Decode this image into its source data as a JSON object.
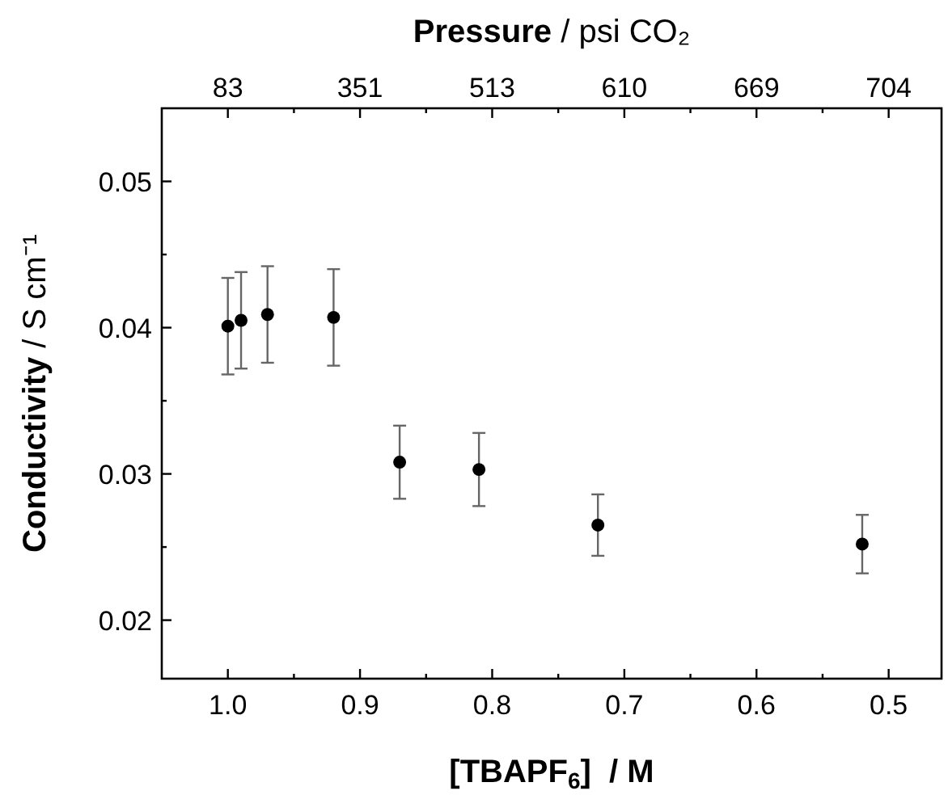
{
  "chart_data": {
    "type": "scatter",
    "xlabel": "[TBAPF$_{6}$]  / M",
    "x2label": "Pressure / psi CO₂",
    "ylabel": "Conductivity / S cm⁻¹",
    "x": [
      1.0,
      0.99,
      0.97,
      0.92,
      0.87,
      0.81,
      0.72,
      0.52
    ],
    "values": [
      0.0401,
      0.0405,
      0.0409,
      0.0407,
      0.0308,
      0.0303,
      0.0265,
      0.0252
    ],
    "errors": [
      0.0033,
      0.0033,
      0.0033,
      0.0033,
      0.0025,
      0.0025,
      0.0021,
      0.002
    ],
    "color": "#000000",
    "marker": "circle",
    "grid": false,
    "xlim": [
      1.05,
      0.46
    ],
    "ylim": [
      0.016,
      0.055
    ],
    "xticks": [
      {
        "value": 1.0,
        "label": "1.0"
      },
      {
        "value": 0.95,
        "label": null
      },
      0.9,
      {
        "value": 0.85,
        "label": null
      },
      0.8,
      {
        "value": 0.75,
        "label": null
      },
      0.7,
      {
        "value": 0.65,
        "label": null
      },
      0.6,
      {
        "value": 0.55,
        "label": null
      },
      0.5
    ],
    "annotations": [
      "83",
      "351",
      "513",
      "610",
      "669",
      "704"
    ],
    "yticks": [
      0.02,
      {
        "value": 0.025,
        "label": null
      },
      0.03,
      {
        "value": 0.035,
        "label": null
      },
      0.04,
      {
        "value": 0.045,
        "label": null
      },
      0.05
    ]
  }
}
